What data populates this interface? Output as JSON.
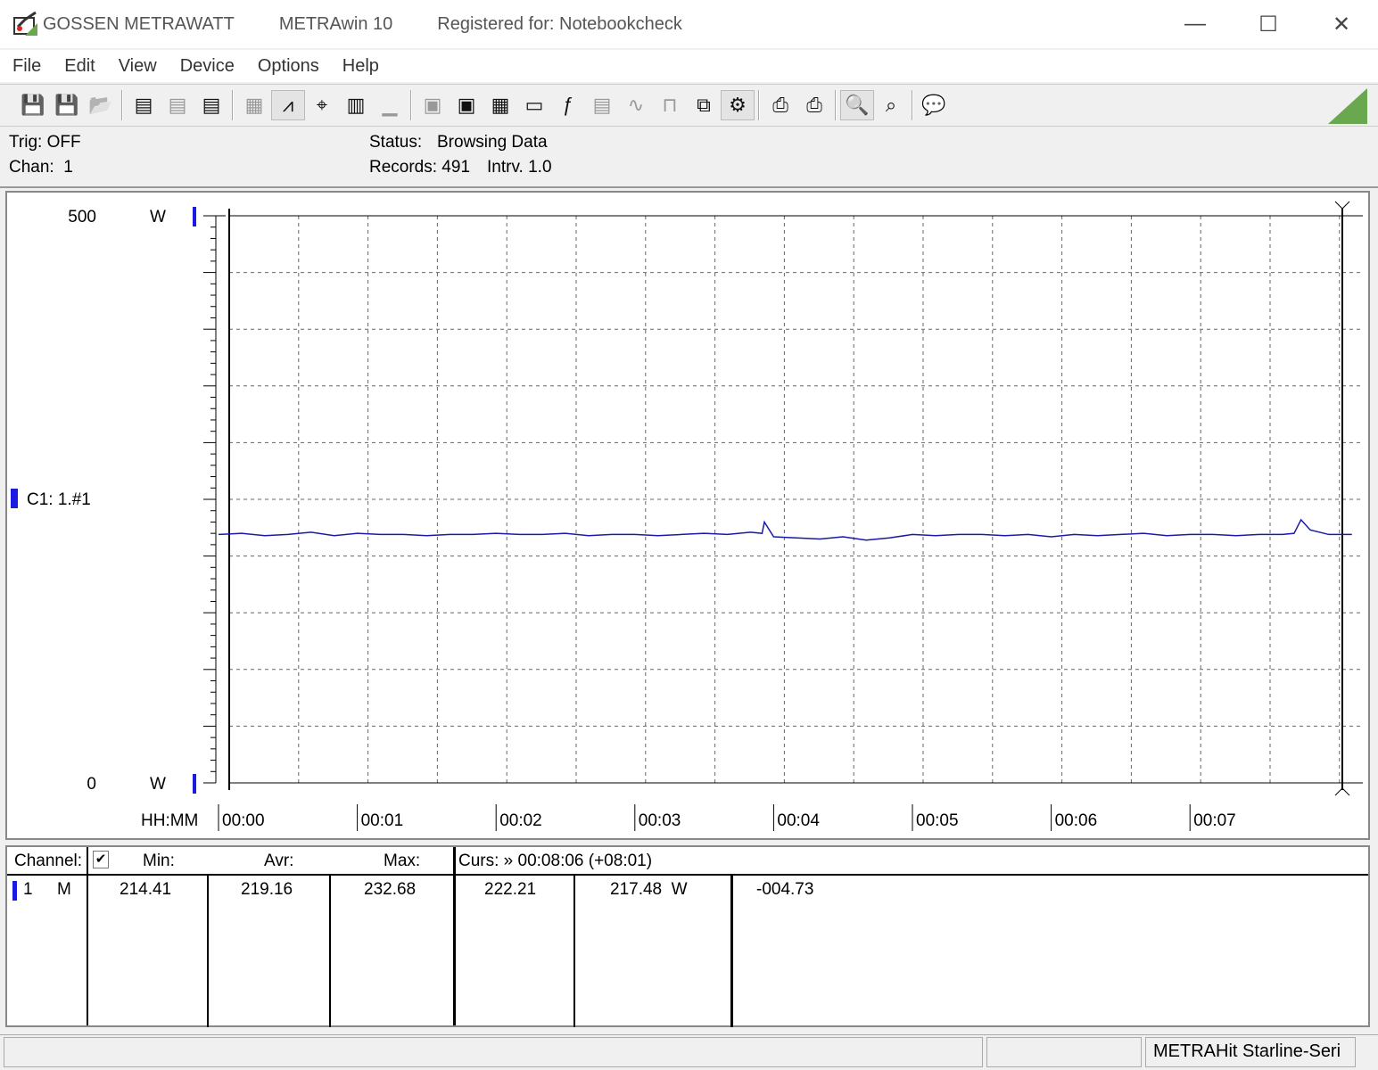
{
  "titlebar": {
    "brand": "GOSSEN METRAWATT",
    "app": "METRAwin 10",
    "registered": "Registered for: Notebookcheck",
    "minimize": "—",
    "maximize": "☐",
    "close": "✕"
  },
  "menu": [
    "File",
    "Edit",
    "View",
    "Device",
    "Options",
    "Help"
  ],
  "toolbar": {
    "icons": [
      "save-icon",
      "save-as-icon",
      "open-icon",
      "|",
      "export-icon",
      "import-icon",
      "send-icon",
      "|",
      "table-view-icon",
      "waveform-icon",
      "crosshair-icon",
      "grid-icon",
      "histogram-icon",
      "|",
      "device-config-icon",
      "download-icon",
      "settings-icon",
      "monitor-icon",
      "function-icon",
      "meter-icon",
      "signal-icon",
      "pulse-icon",
      "copy-icon",
      "trigger-icon",
      "|",
      "print-icon",
      "print-preview-icon",
      "|",
      "zoom-waveform-icon",
      "zoom-icon",
      "|",
      "comment-icon"
    ],
    "accent": "#6aa84f"
  },
  "info": {
    "trig": "Trig: OFF",
    "chan": "Chan:  1",
    "status_label": "Status:",
    "status_value": "Browsing Data",
    "records": "Records: 491",
    "interval": "Intrv. 1.0"
  },
  "chart_data": {
    "type": "line",
    "xlabel": "HH:MM",
    "ylabel": "",
    "y_unit": "W",
    "ylim": [
      0,
      500
    ],
    "xlim": [
      "00:00:00",
      "00:08:11"
    ],
    "y_ticks": [
      "500",
      "0"
    ],
    "x_ticks": [
      "00:00",
      "00:01",
      "00:02",
      "00:03",
      "00:04",
      "00:05",
      "00:06",
      "00:07"
    ],
    "grid": true,
    "channel_label": "C1: 1.#1",
    "series_color": "#1a1aa8",
    "series": [
      {
        "x": [
          "00:00:00",
          "00:00:10",
          "00:00:20",
          "00:00:30",
          "00:00:40",
          "00:00:50",
          "00:01:00",
          "00:01:10",
          "00:01:20",
          "00:01:30",
          "00:01:40",
          "00:01:50",
          "00:02:00",
          "00:02:10",
          "00:02:20",
          "00:02:30",
          "00:02:40",
          "00:02:50",
          "00:03:00",
          "00:03:10",
          "00:03:20",
          "00:03:30",
          "00:03:40",
          "00:03:50",
          "00:03:55",
          "00:03:56",
          "00:04:00",
          "00:04:10",
          "00:04:20",
          "00:04:30",
          "00:04:40",
          "00:04:50",
          "00:05:00",
          "00:05:10",
          "00:05:20",
          "00:05:30",
          "00:05:40",
          "00:05:50",
          "00:06:00",
          "00:06:10",
          "00:06:20",
          "00:06:30",
          "00:06:40",
          "00:06:50",
          "00:07:00",
          "00:07:10",
          "00:07:20",
          "00:07:30",
          "00:07:40",
          "00:07:45",
          "00:07:48",
          "00:07:52",
          "00:08:00",
          "00:08:10"
        ],
        "y": [
          219,
          220,
          218,
          219,
          221,
          218,
          220,
          219,
          219,
          218,
          219,
          219,
          220,
          219,
          219,
          220,
          218,
          219,
          219,
          218,
          219,
          220,
          219,
          221,
          220,
          230,
          217,
          216,
          215,
          217,
          214,
          216,
          219,
          218,
          219,
          219,
          218,
          219,
          217,
          219,
          218,
          219,
          220,
          218,
          219,
          219,
          218,
          219,
          219,
          220,
          232,
          223,
          219,
          219
        ]
      }
    ]
  },
  "table": {
    "channel": "Channel:",
    "checkbox": "✔",
    "min": "Min:",
    "avr": "Avr:",
    "max": "Max:",
    "curs": "Curs: » 00:08:06 (+08:01)",
    "row": {
      "num": "1",
      "mode": "M",
      "min": "214.41",
      "avr": "219.16",
      "max": "232.68",
      "c1": "222.21",
      "c2": "217.48  W",
      "diff": "-004.73"
    }
  },
  "statusbar": {
    "device": "METRAHit Starline-Seri"
  }
}
